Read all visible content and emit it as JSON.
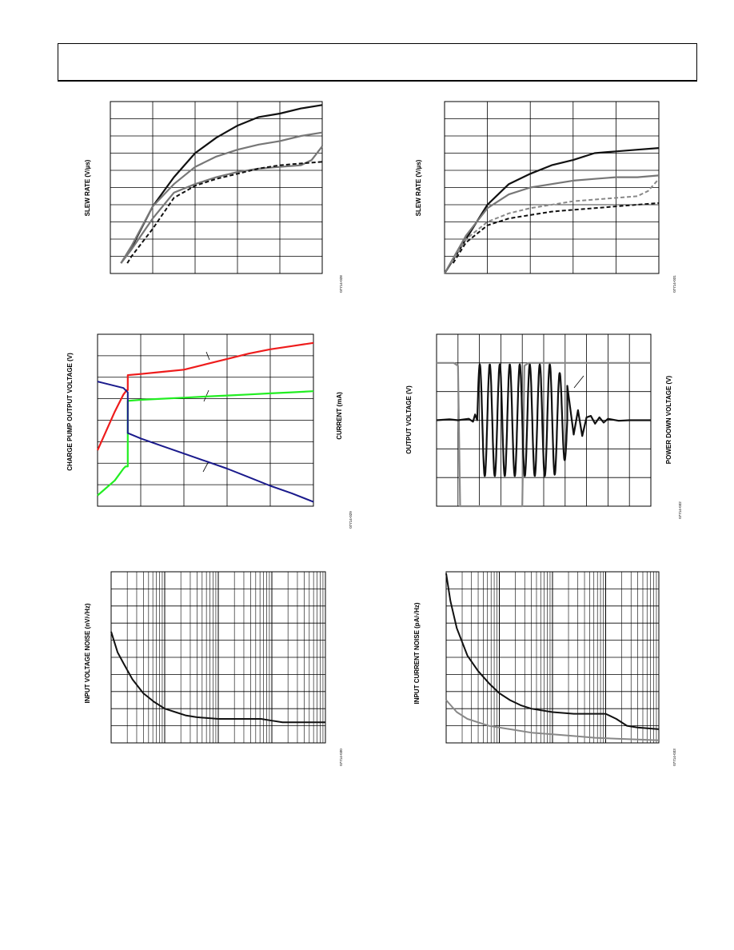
{
  "header": {
    "text": ""
  },
  "chart_data": [
    {
      "id": "c1",
      "type": "line",
      "ylabel": "SLEW RATE (V/µs)",
      "ylabel2": "",
      "fig_id": "07714-028",
      "xlim": [
        0,
        10
      ],
      "ylim": [
        0,
        10
      ],
      "grid": {
        "x": 5,
        "y": 10,
        "xlog": false,
        "ylog": false
      },
      "series": [
        {
          "color": "#111111",
          "width": 2.2,
          "dash": "",
          "x": [
            0.5,
            1,
            2,
            3,
            4,
            5,
            6,
            7,
            8,
            9,
            10
          ],
          "y": [
            0.6,
            1.5,
            3.9,
            5.6,
            7.0,
            7.9,
            8.6,
            9.1,
            9.3,
            9.6,
            9.8
          ]
        },
        {
          "color": "#777777",
          "width": 2.2,
          "dash": "",
          "x": [
            0.5,
            1,
            2,
            3,
            4,
            5,
            6,
            7,
            8,
            9,
            10
          ],
          "y": [
            0.6,
            1.6,
            3.9,
            5.2,
            6.2,
            6.8,
            7.2,
            7.5,
            7.7,
            8.0,
            8.2
          ]
        },
        {
          "color": "#777777",
          "width": 2.2,
          "dash": "",
          "x": [
            0.5,
            1,
            2,
            3,
            4,
            5,
            6,
            7,
            8,
            9,
            9.5,
            10
          ],
          "y": [
            0.6,
            1.4,
            3.2,
            4.7,
            5.2,
            5.6,
            5.9,
            6.1,
            6.2,
            6.3,
            6.6,
            7.4
          ]
        },
        {
          "color": "#111111",
          "width": 2.0,
          "dash": "5,3",
          "x": [
            0.8,
            1,
            2,
            3,
            4,
            5,
            6,
            7,
            8,
            9,
            10
          ],
          "y": [
            0.6,
            1.0,
            2.6,
            4.4,
            5.1,
            5.5,
            5.8,
            6.1,
            6.3,
            6.4,
            6.5
          ]
        }
      ]
    },
    {
      "id": "c2",
      "type": "line",
      "ylabel": "SLEW RATE (V/µs)",
      "ylabel2": "",
      "fig_id": "07714-031",
      "xlim": [
        0,
        10
      ],
      "ylim": [
        0,
        10
      ],
      "grid": {
        "x": 5,
        "y": 10,
        "xlog": false,
        "ylog": false
      },
      "series": [
        {
          "color": "#111111",
          "width": 2.2,
          "dash": "",
          "x": [
            0,
            1,
            2,
            3,
            4,
            5,
            6,
            7,
            8,
            9,
            10
          ],
          "y": [
            0,
            2.0,
            4.0,
            5.2,
            5.8,
            6.3,
            6.6,
            7.0,
            7.1,
            7.2,
            7.3
          ]
        },
        {
          "color": "#777777",
          "width": 2.2,
          "dash": "",
          "x": [
            0,
            1,
            2,
            3,
            4,
            5,
            6,
            7,
            8,
            9,
            10
          ],
          "y": [
            0,
            2.2,
            3.8,
            4.6,
            5.0,
            5.2,
            5.4,
            5.5,
            5.6,
            5.6,
            5.7
          ]
        },
        {
          "color": "#888888",
          "width": 2.0,
          "dash": "5,3",
          "x": [
            0.3,
            1,
            2,
            3,
            4,
            5,
            6,
            7,
            8,
            9,
            9.5,
            10
          ],
          "y": [
            0.6,
            2.0,
            3.0,
            3.5,
            3.8,
            4.0,
            4.2,
            4.3,
            4.4,
            4.5,
            4.8,
            5.5
          ]
        },
        {
          "color": "#111111",
          "width": 2.0,
          "dash": "5,3",
          "x": [
            0.4,
            1,
            2,
            3,
            4,
            5,
            6,
            7,
            8,
            9,
            10
          ],
          "y": [
            0.6,
            1.8,
            2.8,
            3.2,
            3.4,
            3.6,
            3.7,
            3.8,
            3.9,
            4.0,
            4.1
          ]
        }
      ]
    },
    {
      "id": "c3",
      "type": "line",
      "ylabel": "CHARGE PUMP OUTPUT VOLTAGE (V)",
      "ylabel2": "CURRENT (mA)",
      "fig_id": "07714-029",
      "xlim": [
        0,
        10
      ],
      "ylim": [
        0,
        8
      ],
      "grid": {
        "x": 5,
        "y": 8,
        "xlog": false,
        "ylog": false
      },
      "series": [
        {
          "color": "#ee1c1c",
          "width": 2.2,
          "dash": "",
          "x": [
            0,
            0.8,
            1.2,
            1.35,
            1.4,
            1.4,
            2,
            3,
            4,
            5,
            6,
            7,
            8,
            9,
            10
          ],
          "y": [
            2.6,
            4.4,
            5.2,
            5.4,
            5.4,
            6.1,
            6.15,
            6.25,
            6.35,
            6.6,
            6.85,
            7.1,
            7.3,
            7.45,
            7.6
          ]
        },
        {
          "color": "#22ee22",
          "width": 2.2,
          "dash": "",
          "x": [
            0,
            0.8,
            1.2,
            1.3,
            1.4,
            1.4,
            2,
            3,
            4,
            5,
            6,
            7,
            8,
            9,
            10
          ],
          "y": [
            0.5,
            1.2,
            1.75,
            1.85,
            1.85,
            4.9,
            4.95,
            5.0,
            5.05,
            5.1,
            5.15,
            5.2,
            5.25,
            5.3,
            5.35
          ]
        },
        {
          "color": "#1a1a8c",
          "width": 2.0,
          "dash": "",
          "x": [
            0,
            1.2,
            1.3,
            1.4,
            1.4,
            2,
            3,
            4,
            5,
            6,
            7,
            8,
            9,
            10
          ],
          "y": [
            5.8,
            5.5,
            5.4,
            5.3,
            3.4,
            3.15,
            2.8,
            2.45,
            2.1,
            1.75,
            1.35,
            0.95,
            0.6,
            0.2
          ]
        }
      ]
    },
    {
      "id": "c4",
      "type": "line",
      "ylabel": "OUTPUT VOLTAGE (V)",
      "ylabel2": "POWER DOWN VOLTAGE (V)",
      "fig_id": "07714-032",
      "xlim": [
        0,
        10
      ],
      "ylim": [
        -3,
        3
      ],
      "grid": {
        "x": 10,
        "y": 6,
        "xlog": false,
        "ylog": false
      },
      "series": [
        {
          "color": "#888888",
          "width": 2.2,
          "dash": "",
          "x": [
            0,
            0.8,
            1.0,
            1.1,
            4.0,
            4.1,
            4.3,
            10
          ],
          "y": [
            2.0,
            2.0,
            1.9,
            -3.0,
            -3.0,
            1.9,
            2.0,
            2.0
          ]
        }
      ],
      "osc": {
        "color": "#111111",
        "width": 2.2,
        "baseline": 0.0,
        "x0": 1.9,
        "x1": 6.1,
        "cycles": 9,
        "amp": 1.95,
        "pre": {
          "x": [
            0,
            0.6,
            1.0,
            1.5,
            1.7,
            1.8
          ],
          "y": [
            0.0,
            0.03,
            0.0,
            0.05,
            -0.05,
            0.2
          ]
        },
        "post": {
          "x": [
            6.1,
            6.4,
            6.6,
            6.8,
            7.0,
            7.2,
            7.4,
            7.6,
            7.8,
            8.0,
            8.5,
            9,
            10
          ],
          "y": [
            1.2,
            -0.5,
            0.35,
            -0.55,
            0.1,
            0.15,
            -0.12,
            0.1,
            -0.08,
            0.05,
            -0.02,
            0.0,
            0.0
          ]
        }
      }
    },
    {
      "id": "c5",
      "type": "line",
      "ylabel": "INPUT VOLTAGE NOISE (nV/√Hz)",
      "ylabel2": "",
      "fig_id": "07714-030",
      "xlim": [
        0,
        1
      ],
      "ylim": [
        0,
        10
      ],
      "grid": {
        "x": 1,
        "y": 10,
        "xlog": true,
        "ylog": false,
        "decades": 4
      },
      "series": [
        {
          "color": "#111111",
          "width": 2.0,
          "dash": "",
          "x": [
            0,
            0.03,
            0.06,
            0.1,
            0.15,
            0.2,
            0.25,
            0.3,
            0.35,
            0.4,
            0.5,
            0.6,
            0.7,
            0.75,
            0.8,
            0.9,
            1.0
          ],
          "y": [
            6.5,
            5.3,
            4.6,
            3.7,
            2.9,
            2.4,
            2.0,
            1.8,
            1.6,
            1.5,
            1.4,
            1.4,
            1.4,
            1.3,
            1.2,
            1.2,
            1.2
          ]
        }
      ]
    },
    {
      "id": "c6",
      "type": "line",
      "ylabel": "INPUT CURRENT NOISE (pA/√Hz)",
      "ylabel2": "",
      "fig_id": "07714-033",
      "xlim": [
        0,
        1
      ],
      "ylim": [
        0,
        10
      ],
      "grid": {
        "x": 1,
        "y": 10,
        "xlog": true,
        "ylog": false,
        "decades": 4
      },
      "series": [
        {
          "color": "#111111",
          "width": 2.0,
          "dash": "",
          "x": [
            0,
            0.02,
            0.05,
            0.1,
            0.15,
            0.2,
            0.25,
            0.3,
            0.35,
            0.4,
            0.5,
            0.6,
            0.7,
            0.75,
            0.8,
            0.85,
            0.9,
            1.0
          ],
          "y": [
            9.9,
            8.3,
            6.7,
            5.1,
            4.2,
            3.5,
            2.9,
            2.5,
            2.2,
            2.0,
            1.8,
            1.7,
            1.7,
            1.7,
            1.4,
            1.0,
            0.9,
            0.8
          ]
        },
        {
          "color": "#888888",
          "width": 2.0,
          "dash": "",
          "x": [
            0,
            0.05,
            0.1,
            0.2,
            0.3,
            0.4,
            0.5,
            0.6,
            0.7,
            0.8,
            0.9,
            1.0
          ],
          "y": [
            2.5,
            1.8,
            1.4,
            1.0,
            0.8,
            0.6,
            0.5,
            0.4,
            0.3,
            0.25,
            0.2,
            0.15
          ]
        }
      ]
    }
  ]
}
